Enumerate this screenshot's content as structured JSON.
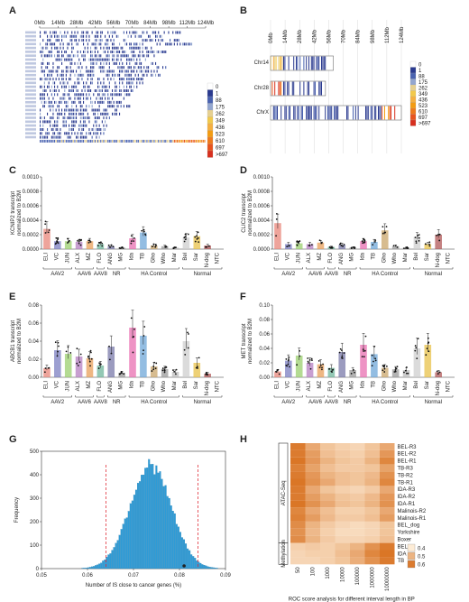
{
  "panels": {
    "A": {
      "letter": "A"
    },
    "B": {
      "letter": "B"
    },
    "C": {
      "letter": "C"
    },
    "D": {
      "letter": "D"
    },
    "E": {
      "letter": "E"
    },
    "F": {
      "letter": "F"
    },
    "G": {
      "letter": "G"
    },
    "H": {
      "letter": "H"
    }
  },
  "mb_ticks": [
    "0Mb",
    "14Mb",
    "28Mb",
    "42Mb",
    "56Mb",
    "70Mb",
    "84Mb",
    "98Mb",
    "112Mb",
    "124Mb"
  ],
  "heat_legend": [
    "0",
    "1",
    "88",
    "175",
    "262",
    "349",
    "436",
    "523",
    "610",
    "697",
    ">697"
  ],
  "heat_colors": [
    "#ffffff",
    "#2a3a8f",
    "#4a63b0",
    "#93a6cf",
    "#e6d090",
    "#f2c94c",
    "#f5b041",
    "#f39c12",
    "#ee7a1c",
    "#e8541d",
    "#d7301f"
  ],
  "chromosomes_B": [
    "Chr14",
    "Chr28",
    "ChrX"
  ],
  "bar_groups": [
    "AAV2",
    "AAV6",
    "AAV8",
    "NR",
    "HA Control",
    "Normal"
  ],
  "bar_categories": [
    "ELI",
    "VC",
    "JUN",
    "ALX",
    "MZ",
    "FLO",
    "ANG",
    "MG",
    "Ida",
    "TB",
    "Gho",
    "Who",
    "Mar",
    "Bel",
    "Sar",
    "N-dog",
    "NTC"
  ],
  "bar_colors": [
    "#e8857a",
    "#7c7fc2",
    "#9bcf6f",
    "#b57fc2",
    "#e89f5a",
    "#6fb59b",
    "#7a7aaa",
    "#999999",
    "#e86fb0",
    "#6fa7d8",
    "#c9a66b",
    "#999999",
    "#bbbbbb",
    "#cfcfcf",
    "#e8c24a",
    "#b05757",
    "#dddddd"
  ],
  "chart_data": [
    {
      "type": "bar",
      "panel": "C",
      "ylabel": "KCNIP2 transcript normalized to B2M",
      "yticks": [
        "0.0000",
        "0.0002",
        "0.0004",
        "0.0006",
        "0.0008",
        "0.0010"
      ],
      "ylim": [
        0,
        0.001
      ],
      "categories": [
        "ELI",
        "VC",
        "JUN",
        "ALX",
        "MZ",
        "FLO",
        "ANG",
        "MG",
        "Ida",
        "TB",
        "Gho",
        "Who",
        "Mar",
        "Bel",
        "Sar",
        "N-dog",
        "NTC"
      ],
      "values": [
        0.00028,
        0.00011,
        0.00011,
        0.0001,
        0.00011,
        7e-05,
        4e-05,
        2e-05,
        0.00015,
        0.00023,
        5e-05,
        4e-05,
        2e-05,
        0.00016,
        0.00018,
        5e-05,
        0.0
      ]
    },
    {
      "type": "bar",
      "panel": "D",
      "ylabel": "CLIC2 transcript normalized to B2M",
      "yticks": [
        "0.0000",
        "0.0002",
        "0.0004",
        "0.0006",
        "0.0008",
        "0.0010"
      ],
      "ylim": [
        0,
        0.001
      ],
      "categories": [
        "ELI",
        "VC",
        "JUN",
        "ALX",
        "MZ",
        "FLO",
        "ANG",
        "MG",
        "Ida",
        "TB",
        "Gho",
        "Who",
        "Mar",
        "Bel",
        "Sar",
        "N-dog",
        "NTC"
      ],
      "values": [
        0.00036,
        7e-05,
        8e-05,
        7e-05,
        9e-05,
        3e-05,
        6e-05,
        2e-05,
        0.00011,
        0.0001,
        0.00026,
        4e-05,
        2e-05,
        0.00017,
        7e-05,
        0.0002,
        0.0
      ]
    },
    {
      "type": "bar",
      "panel": "E",
      "ylabel": "ABCB1 transcript normalized to B2M",
      "yticks": [
        "0.00",
        "0.02",
        "0.04",
        "0.06",
        "0.08"
      ],
      "ylim": [
        0,
        0.08
      ],
      "categories": [
        "ELI",
        "VC",
        "JUN",
        "ALX",
        "MZ",
        "FLO",
        "ANG",
        "MG",
        "Ida",
        "TB",
        "Gho",
        "Who",
        "Mar",
        "Bel",
        "Sar",
        "N-dog",
        "NTC"
      ],
      "values": [
        0.01,
        0.03,
        0.026,
        0.023,
        0.021,
        0.013,
        0.034,
        0.005,
        0.055,
        0.046,
        0.012,
        0.009,
        0.006,
        0.04,
        0.016,
        0.004,
        0.0
      ]
    },
    {
      "type": "bar",
      "panel": "F",
      "ylabel": "MET transcript normalized to B2M",
      "yticks": [
        "0.00",
        "0.02",
        "0.04",
        "0.06",
        "0.08",
        "0.10"
      ],
      "ylim": [
        0,
        0.1
      ],
      "categories": [
        "ELI",
        "VC",
        "JUN",
        "ALX",
        "MZ",
        "FLO",
        "ANG",
        "MG",
        "Ida",
        "TB",
        "Gho",
        "Who",
        "Mar",
        "Bel",
        "Sar",
        "N-dog",
        "NTC"
      ],
      "values": [
        0.008,
        0.023,
        0.03,
        0.02,
        0.018,
        0.013,
        0.035,
        0.01,
        0.045,
        0.032,
        0.013,
        0.011,
        0.01,
        0.04,
        0.045,
        0.007,
        0.0
      ]
    },
    {
      "type": "bar",
      "panel": "G",
      "xlabel": "Number of IS close to cancer genes (%)",
      "ylabel": "Frequency",
      "xticks": [
        "0.05",
        "0.06",
        "0.07",
        "0.08",
        "0.09"
      ],
      "yticks": [
        "0",
        "100",
        "200",
        "300",
        "400",
        "500"
      ],
      "xlim": [
        0.05,
        0.09
      ],
      "ylim": [
        0,
        500
      ],
      "dashed_lines": [
        0.064,
        0.084
      ],
      "marker_x": 0.081
    },
    {
      "type": "heatmap",
      "panel": "H",
      "xlabel": "ROC score analysis for different interval length in BP",
      "columns": [
        "50",
        "100",
        "1000",
        "10000",
        "100000",
        "1000000",
        "10000000"
      ],
      "rows": [
        "BEL-R3",
        "BEL-R2",
        "BEL-R1",
        "TB-R3",
        "TB-R2",
        "TB-R1",
        "IDA-R3",
        "IDA-R2",
        "IDA-R1",
        "Malinois-R2",
        "Malinois-R1",
        "BEL_dog",
        "Yorkshire",
        "Boxer",
        "BEL",
        "IDA",
        "TB"
      ],
      "row_groups": [
        {
          "name": "ATAC-Seq",
          "from": 0,
          "to": 13
        },
        {
          "name": "Methylation",
          "from": 14,
          "to": 16
        }
      ],
      "legend": [
        "0.4",
        "0.5",
        "0.6"
      ],
      "values": [
        [
          0.6,
          0.52,
          0.47,
          0.45,
          0.44,
          0.47,
          0.52
        ],
        [
          0.6,
          0.54,
          0.48,
          0.46,
          0.45,
          0.48,
          0.55
        ],
        [
          0.61,
          0.55,
          0.5,
          0.47,
          0.46,
          0.5,
          0.58
        ],
        [
          0.59,
          0.53,
          0.48,
          0.46,
          0.46,
          0.47,
          0.53
        ],
        [
          0.6,
          0.55,
          0.5,
          0.48,
          0.47,
          0.49,
          0.56
        ],
        [
          0.61,
          0.56,
          0.52,
          0.48,
          0.47,
          0.5,
          0.58
        ],
        [
          0.6,
          0.52,
          0.47,
          0.45,
          0.44,
          0.46,
          0.52
        ],
        [
          0.6,
          0.54,
          0.5,
          0.47,
          0.46,
          0.49,
          0.55
        ],
        [
          0.61,
          0.56,
          0.52,
          0.48,
          0.47,
          0.5,
          0.56
        ],
        [
          0.58,
          0.52,
          0.48,
          0.45,
          0.45,
          0.47,
          0.52
        ],
        [
          0.59,
          0.54,
          0.49,
          0.46,
          0.46,
          0.48,
          0.54
        ],
        [
          0.57,
          0.5,
          0.46,
          0.44,
          0.43,
          0.44,
          0.47
        ],
        [
          0.56,
          0.49,
          0.45,
          0.43,
          0.43,
          0.44,
          0.47
        ],
        [
          0.57,
          0.5,
          0.46,
          0.44,
          0.44,
          0.45,
          0.48
        ],
        [
          0.45,
          0.46,
          0.45,
          0.47,
          0.5,
          0.56,
          0.6
        ],
        [
          0.44,
          0.45,
          0.45,
          0.48,
          0.52,
          0.58,
          0.61
        ],
        [
          0.44,
          0.44,
          0.45,
          0.47,
          0.51,
          0.56,
          0.6
        ]
      ]
    }
  ]
}
